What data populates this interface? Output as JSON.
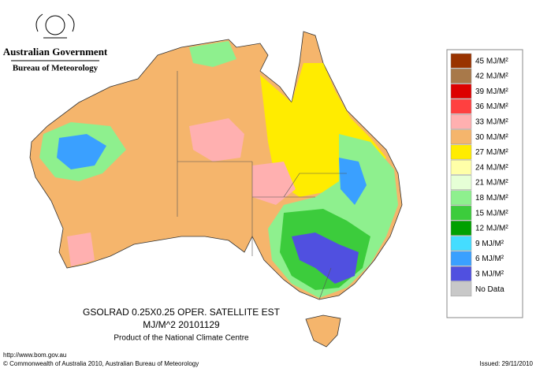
{
  "header": {
    "title": "Australian Government",
    "subtitle": "Bureau of Meteorology"
  },
  "caption": {
    "line1": "GSOLRAD   0.25X0.25 OPER. SATELLITE EST",
    "line2": "MJ/M^2  20101129",
    "line3": "Product of the National Climate Centre"
  },
  "footer": {
    "url": "http://www.bom.gov.au",
    "copyright": "© Commonwealth of Australia 2010, Australian Bureau of Meteorology",
    "issued": "Issued: 29/11/2010"
  },
  "legend": {
    "items": [
      {
        "label": "45 MJ/M²",
        "color": "#993300"
      },
      {
        "label": "42 MJ/M²",
        "color": "#a8794a"
      },
      {
        "label": "39 MJ/M²",
        "color": "#dd0000"
      },
      {
        "label": "36 MJ/M²",
        "color": "#ff4040"
      },
      {
        "label": "33 MJ/M²",
        "color": "#ffb0b0"
      },
      {
        "label": "30 MJ/M²",
        "color": "#f5b56c"
      },
      {
        "label": "27 MJ/M²",
        "color": "#ffec00"
      },
      {
        "label": "24 MJ/M²",
        "color": "#ffffa8"
      },
      {
        "label": "21 MJ/M²",
        "color": "#e6ffd6"
      },
      {
        "label": "18 MJ/M²",
        "color": "#8ef08e"
      },
      {
        "label": "15 MJ/M²",
        "color": "#3ccc3c"
      },
      {
        "label": "12 MJ/M²",
        "color": "#00a000"
      },
      {
        "label": "9 MJ/M²",
        "color": "#44ddff"
      },
      {
        "label": "6 MJ/M²",
        "color": "#3aa0ff"
      },
      {
        "label": "3 MJ/M²",
        "color": "#5050e0"
      },
      {
        "label": "No Data",
        "color": "#c8c8c8"
      }
    ]
  }
}
